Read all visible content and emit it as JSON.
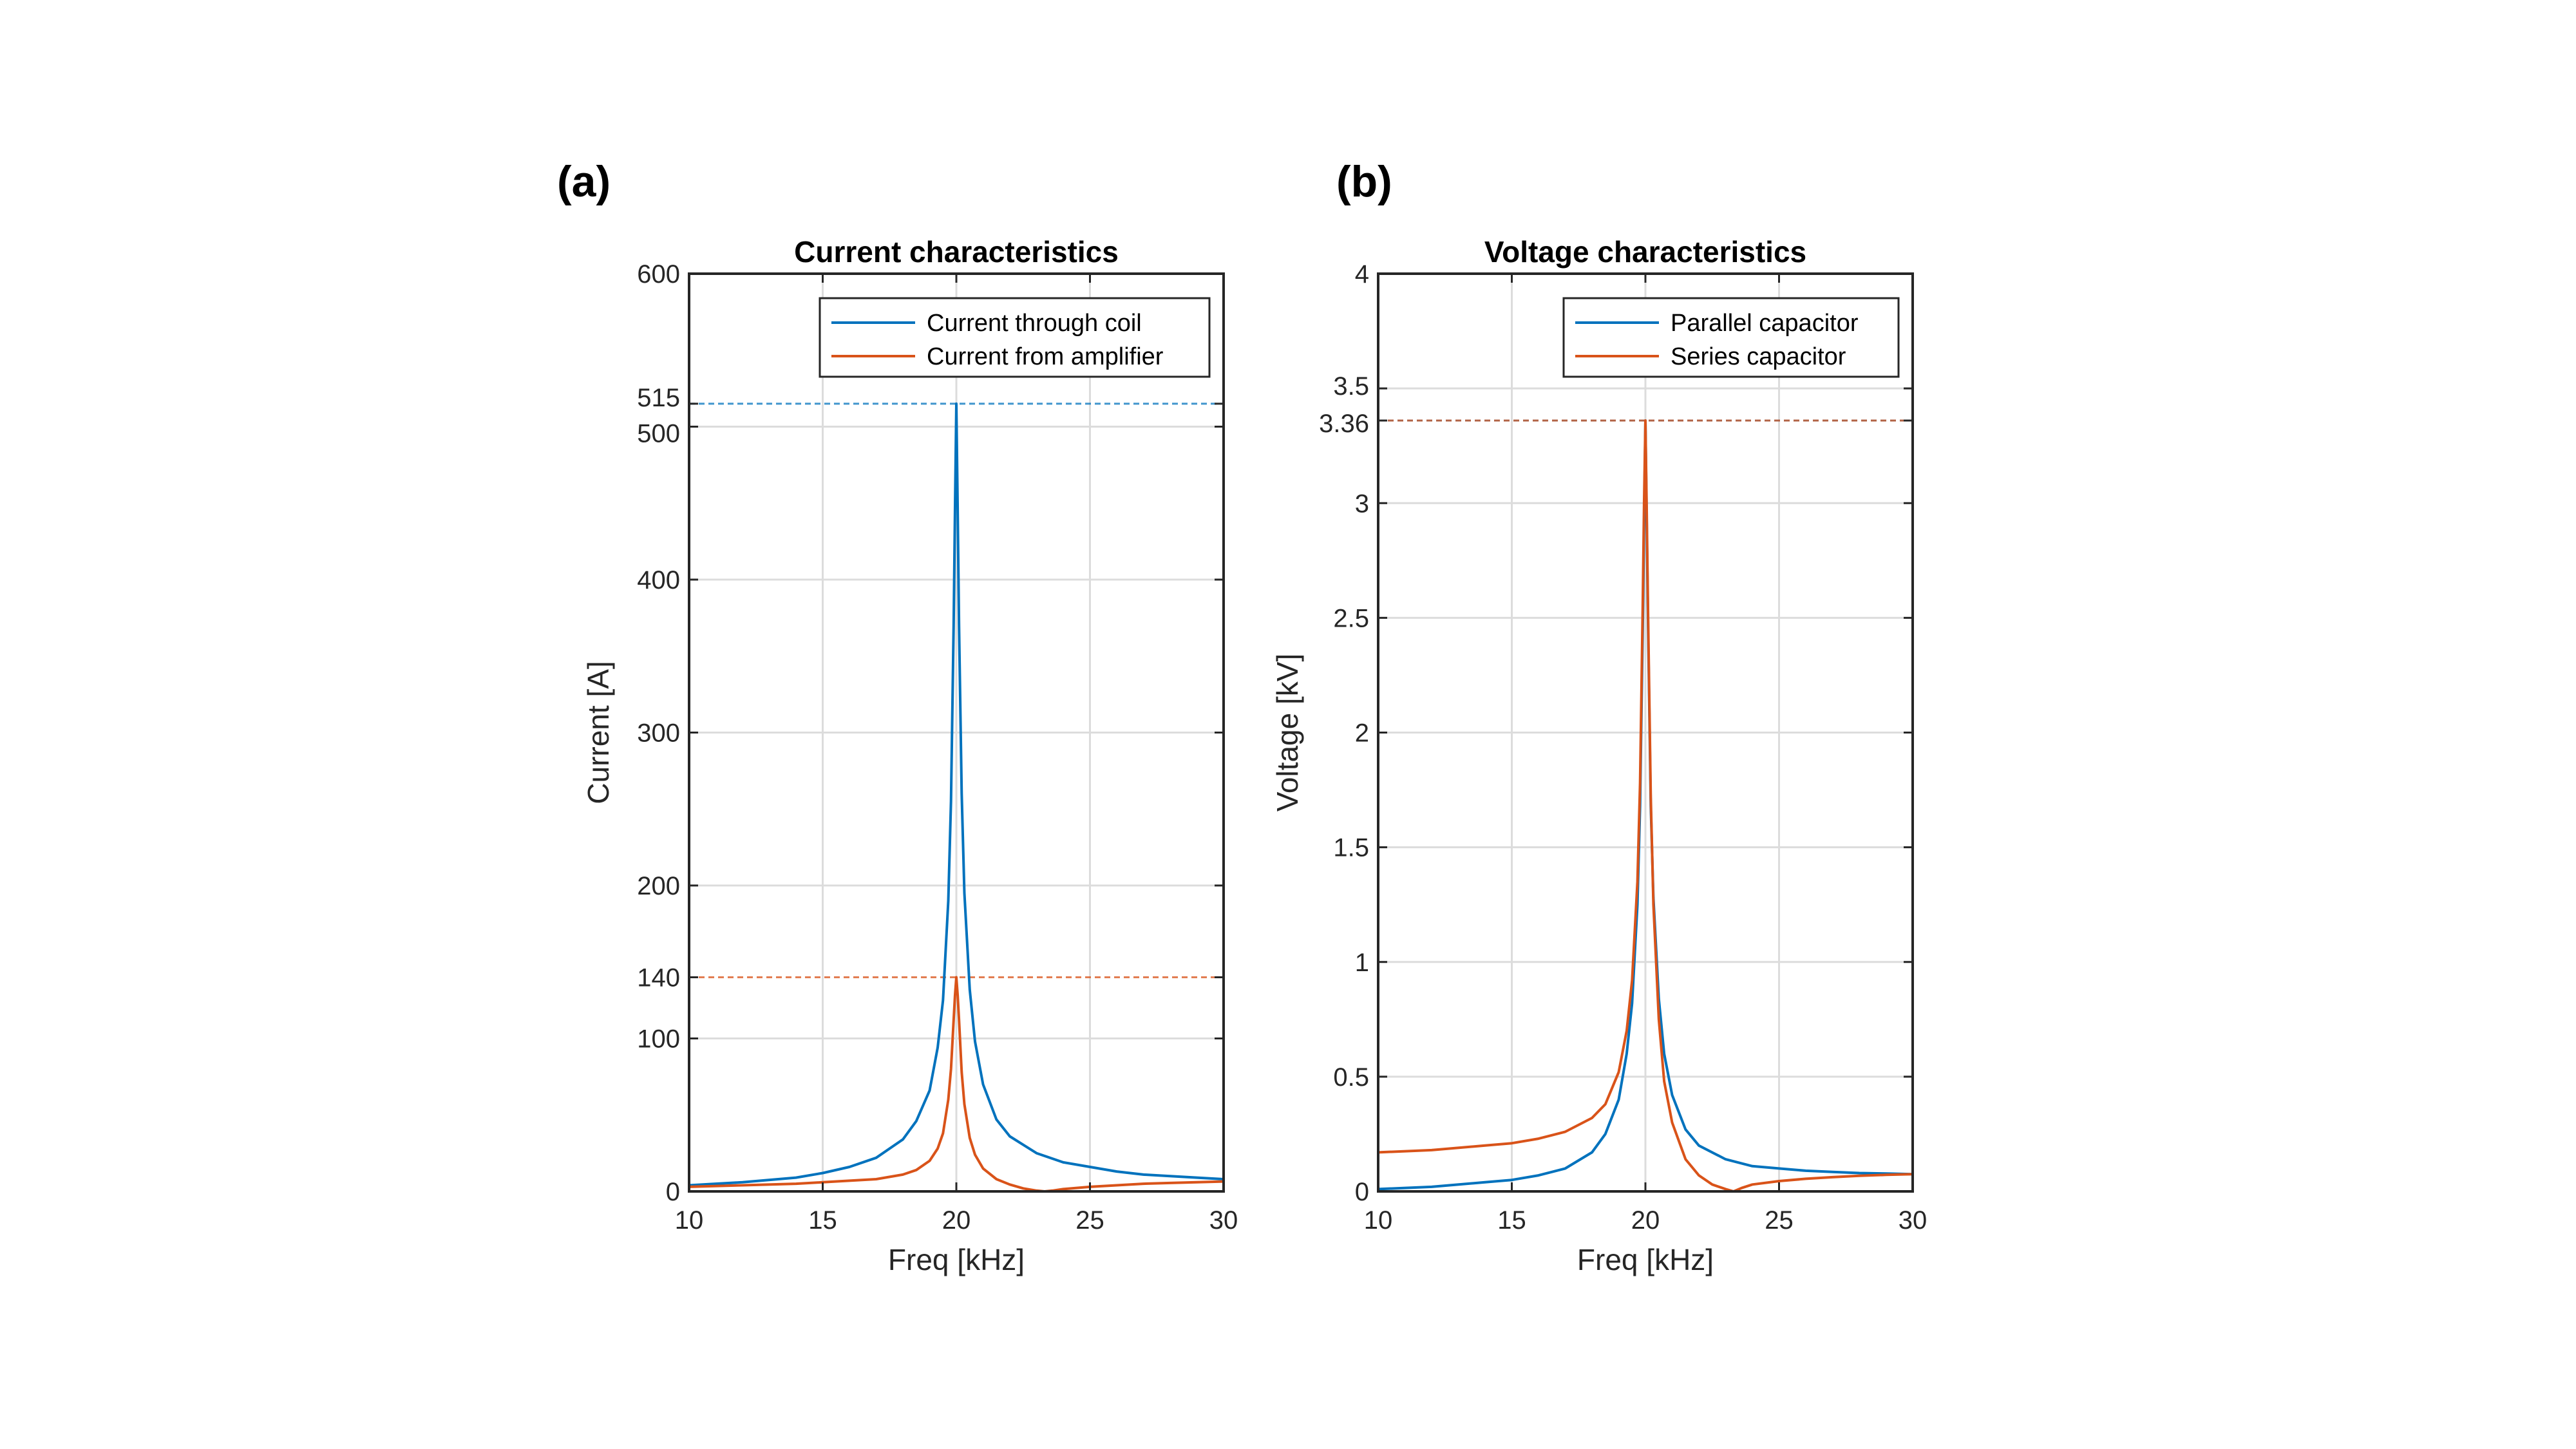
{
  "colors": {
    "series1": "#0072BD",
    "series2": "#D95319",
    "grid": "#dcdcdc",
    "axis": "#262626"
  },
  "chart_data": [
    {
      "panel_label": "(a)",
      "type": "line",
      "title": "Current characteristics",
      "xlabel": "Freq [kHz]",
      "ylabel": "Current [A]",
      "xlim": [
        10,
        30
      ],
      "ylim": [
        0,
        600
      ],
      "grid": true,
      "legend_position": "top-right",
      "xticks": [
        10,
        15,
        20,
        25,
        30
      ],
      "xtick_labels": [
        "10",
        "15",
        "20",
        "25",
        "30"
      ],
      "yticks": [
        0,
        100,
        140,
        200,
        300,
        400,
        500,
        515,
        600
      ],
      "ytick_labels": [
        "0",
        "100",
        "140",
        "200",
        "300",
        "400",
        "500",
        "515",
        "600"
      ],
      "reference_lines": [
        {
          "y": 515,
          "series": "Current through coil"
        },
        {
          "y": 140,
          "series": "Current from amplifier"
        }
      ],
      "series": [
        {
          "name": "Current through coil",
          "x": [
            10,
            12,
            14,
            15,
            16,
            17,
            18,
            18.5,
            19,
            19.3,
            19.5,
            19.7,
            19.8,
            19.9,
            19.95,
            20,
            20.05,
            20.1,
            20.2,
            20.3,
            20.5,
            20.7,
            21,
            21.5,
            22,
            23,
            24,
            25,
            26,
            27,
            28,
            29,
            30
          ],
          "y": [
            4,
            6,
            9,
            12,
            16,
            22,
            34,
            46,
            66,
            94,
            125,
            190,
            255,
            370,
            445,
            515,
            445,
            370,
            260,
            195,
            132,
            98,
            70,
            47,
            36,
            25,
            19,
            16,
            13,
            11,
            10,
            9,
            8
          ]
        },
        {
          "name": "Current from amplifier",
          "x": [
            10,
            12,
            14,
            15,
            16,
            17,
            18,
            18.5,
            19,
            19.3,
            19.5,
            19.7,
            19.8,
            19.9,
            19.95,
            20,
            20.05,
            20.1,
            20.2,
            20.3,
            20.5,
            20.7,
            21,
            21.5,
            22,
            22.5,
            23,
            23.3,
            23.6,
            24,
            25,
            26,
            27,
            28,
            29,
            30
          ],
          "y": [
            3,
            4,
            5,
            6,
            7,
            8,
            11,
            14,
            20,
            28,
            38,
            60,
            80,
            112,
            128,
            140,
            128,
            112,
            78,
            57,
            35,
            24,
            15,
            8,
            4.5,
            2,
            0.5,
            0,
            0.5,
            1.5,
            3,
            4,
            5,
            5.5,
            6,
            6.5
          ]
        }
      ]
    },
    {
      "panel_label": "(b)",
      "type": "line",
      "title": "Voltage characteristics",
      "xlabel": "Freq [kHz]",
      "ylabel": "Voltage [kV]",
      "xlim": [
        10,
        30
      ],
      "ylim": [
        0,
        4
      ],
      "grid": true,
      "legend_position": "top-right",
      "xticks": [
        10,
        15,
        20,
        25,
        30
      ],
      "xtick_labels": [
        "10",
        "15",
        "20",
        "25",
        "30"
      ],
      "yticks": [
        0,
        0.5,
        1,
        1.5,
        2,
        2.5,
        3,
        3.36,
        3.5,
        4
      ],
      "ytick_labels": [
        "0",
        "0.5",
        "1",
        "1.5",
        "2",
        "2.5",
        "3",
        "3.36",
        "3.5",
        "4"
      ],
      "reference_lines": [
        {
          "y": 3.36,
          "series": "Parallel capacitor"
        },
        {
          "y": 3.36,
          "series": "Series capacitor"
        }
      ],
      "series": [
        {
          "name": "Parallel capacitor",
          "x": [
            10,
            12,
            14,
            15,
            16,
            17,
            18,
            18.5,
            19,
            19.3,
            19.5,
            19.7,
            19.8,
            19.9,
            19.95,
            20,
            20.05,
            20.1,
            20.2,
            20.3,
            20.5,
            20.7,
            21,
            21.5,
            22,
            23,
            24,
            25,
            26,
            27,
            28,
            29,
            30
          ],
          "y": [
            0.01,
            0.02,
            0.04,
            0.05,
            0.07,
            0.1,
            0.17,
            0.25,
            0.4,
            0.6,
            0.82,
            1.25,
            1.68,
            2.45,
            2.9,
            3.36,
            2.9,
            2.45,
            1.68,
            1.28,
            0.84,
            0.6,
            0.42,
            0.27,
            0.2,
            0.14,
            0.11,
            0.1,
            0.09,
            0.085,
            0.08,
            0.078,
            0.075
          ]
        },
        {
          "name": "Series capacitor",
          "x": [
            10,
            12,
            14,
            15,
            16,
            17,
            18,
            18.5,
            19,
            19.3,
            19.5,
            19.7,
            19.8,
            19.9,
            19.95,
            20,
            20.05,
            20.1,
            20.2,
            20.3,
            20.5,
            20.7,
            21,
            21.5,
            22,
            22.5,
            23,
            23.3,
            23.6,
            24,
            25,
            26,
            27,
            28,
            29,
            30
          ],
          "y": [
            0.17,
            0.18,
            0.2,
            0.21,
            0.23,
            0.26,
            0.32,
            0.38,
            0.52,
            0.7,
            0.92,
            1.35,
            1.78,
            2.55,
            3.0,
            3.36,
            2.95,
            2.5,
            1.72,
            1.25,
            0.75,
            0.48,
            0.3,
            0.14,
            0.07,
            0.03,
            0.01,
            0.0,
            0.015,
            0.03,
            0.045,
            0.055,
            0.062,
            0.068,
            0.072,
            0.075
          ]
        }
      ]
    }
  ]
}
